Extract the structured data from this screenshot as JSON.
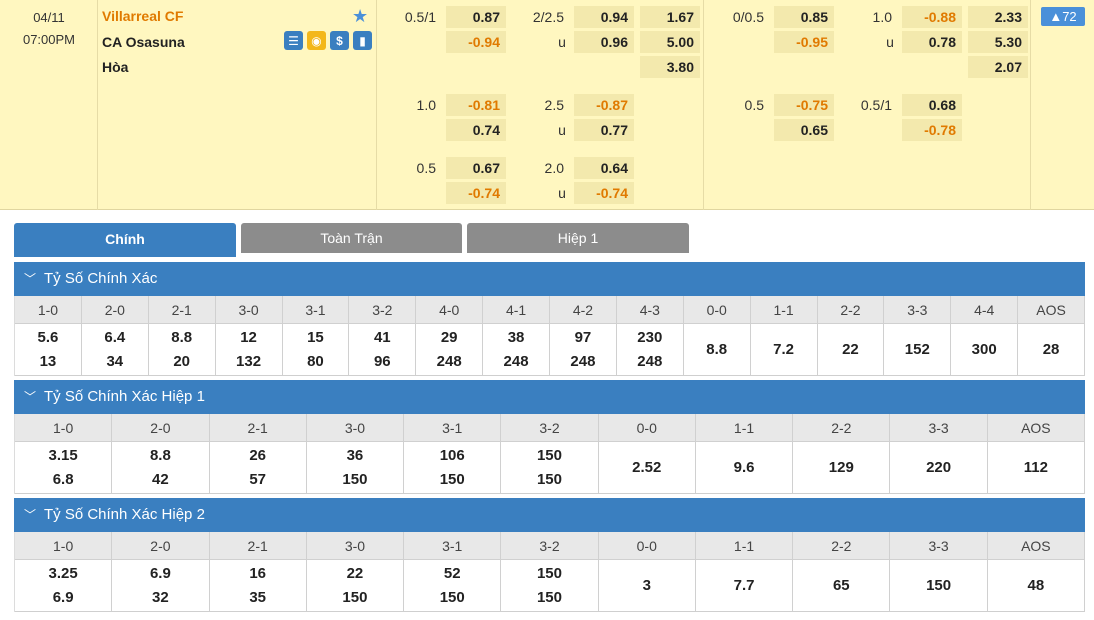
{
  "match": {
    "date": "04/11",
    "time": "07:00PM",
    "home_team": "Villarreal CF",
    "away_team": "CA Osasuna",
    "draw_label": "Hòa",
    "more_count": "▲72",
    "ft_rows": [
      {
        "ah_line": "0.5/1",
        "ah_home": "0.87",
        "ah_away": "-0.94",
        "ou_line": "2/2.5",
        "ou_over": "0.94",
        "ou_label": "u",
        "ou_under": "0.96",
        "x_home": "1.67",
        "x_away": "5.00",
        "x_draw": "3.80"
      },
      {
        "ah_line": "1.0",
        "ah_home": "-0.81",
        "ah_away": "0.74",
        "ou_line": "2.5",
        "ou_over": "-0.87",
        "ou_label": "u",
        "ou_under": "0.77"
      },
      {
        "ah_line": "0.5",
        "ah_home": "0.67",
        "ah_away": "-0.74",
        "ou_line": "2.0",
        "ou_over": "0.64",
        "ou_label": "u",
        "ou_under": "-0.74"
      }
    ],
    "h1_rows": [
      {
        "ah_line": "0/0.5",
        "ah_home": "0.85",
        "ah_away": "-0.95",
        "ou_line": "1.0",
        "ou_over": "-0.88",
        "ou_label": "u",
        "ou_under": "0.78",
        "x_home": "2.33",
        "x_away": "5.30",
        "x_draw": "2.07"
      },
      {
        "ah_line": "0.5",
        "ah_home": "-0.75",
        "ah_away": "0.65",
        "ou_line": "0.5/1",
        "ou_over": "0.68",
        "ou_label": "",
        "ou_under": "-0.78"
      }
    ]
  },
  "tabs": [
    "Chính",
    "Toàn Trận",
    "Hiệp 1"
  ],
  "sections": [
    {
      "title": "Tỷ Số Chính Xác",
      "headers": [
        "1-0",
        "2-0",
        "2-1",
        "3-0",
        "3-1",
        "3-2",
        "4-0",
        "4-1",
        "4-2",
        "4-3",
        "0-0",
        "1-1",
        "2-2",
        "3-3",
        "4-4",
        "AOS"
      ],
      "top": [
        "5.6",
        "6.4",
        "8.8",
        "12",
        "15",
        "41",
        "29",
        "38",
        "97",
        "230",
        "",
        "",
        "",
        "",
        "",
        ""
      ],
      "bottom": [
        "13",
        "34",
        "20",
        "132",
        "80",
        "96",
        "248",
        "248",
        "248",
        "248",
        "",
        "",
        "",
        "",
        "",
        ""
      ],
      "single": [
        "",
        "",
        "",
        "",
        "",
        "",
        "",
        "",
        "",
        "",
        "8.8",
        "7.2",
        "22",
        "152",
        "300",
        "28"
      ]
    },
    {
      "title": "Tỷ Số Chính Xác Hiệp 1",
      "headers": [
        "1-0",
        "2-0",
        "2-1",
        "3-0",
        "3-1",
        "3-2",
        "0-0",
        "1-1",
        "2-2",
        "3-3",
        "AOS"
      ],
      "top": [
        "3.15",
        "8.8",
        "26",
        "36",
        "106",
        "150",
        "",
        "",
        "",
        "",
        ""
      ],
      "bottom": [
        "6.8",
        "42",
        "57",
        "150",
        "150",
        "150",
        "",
        "",
        "",
        "",
        ""
      ],
      "single": [
        "",
        "",
        "",
        "",
        "",
        "",
        "2.52",
        "9.6",
        "129",
        "220",
        "112"
      ]
    },
    {
      "title": "Tỷ Số Chính Xác Hiệp 2",
      "headers": [
        "1-0",
        "2-0",
        "2-1",
        "3-0",
        "3-1",
        "3-2",
        "0-0",
        "1-1",
        "2-2",
        "3-3",
        "AOS"
      ],
      "top": [
        "3.25",
        "6.9",
        "16",
        "22",
        "52",
        "150",
        "",
        "",
        "",
        "",
        ""
      ],
      "bottom": [
        "6.9",
        "32",
        "35",
        "150",
        "150",
        "150",
        "",
        "",
        "",
        "",
        ""
      ],
      "single": [
        "",
        "",
        "",
        "",
        "",
        "",
        "3",
        "7.7",
        "65",
        "150",
        "48"
      ]
    }
  ]
}
